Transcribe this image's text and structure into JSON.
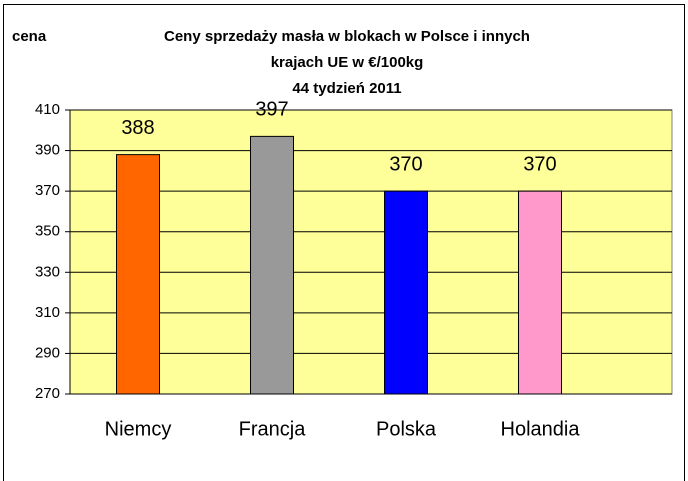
{
  "chart_data": {
    "type": "bar",
    "title": [
      "Ceny sprzedaży masła w blokach w Polsce i  innych",
      "krajach UE w €/100kg",
      "44 tydzień 2011"
    ],
    "y_label": "cena",
    "categories": [
      "Niemcy",
      "Francja",
      "Polska",
      "Holandia"
    ],
    "values": [
      388,
      397,
      370,
      370
    ],
    "colors": [
      "#ff6600",
      "#999999",
      "#0000ff",
      "#ff99cc"
    ],
    "ylim": [
      270,
      410
    ],
    "yticks": [
      270,
      290,
      310,
      330,
      350,
      370,
      390,
      410
    ],
    "grid": true
  }
}
